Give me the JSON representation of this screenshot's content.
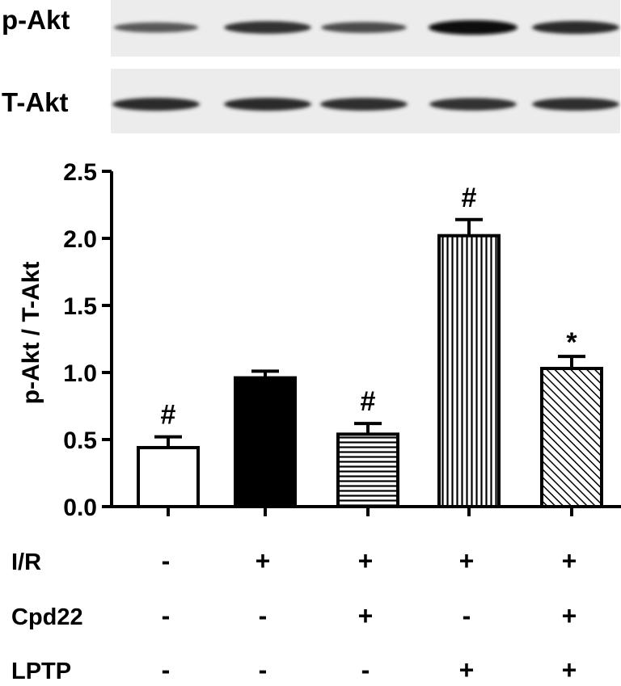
{
  "blot": {
    "rows": [
      {
        "label": "p-Akt",
        "band_intensity": [
          0.45,
          0.75,
          0.55,
          1.0,
          0.8
        ]
      },
      {
        "label": "T-Akt",
        "band_intensity": [
          0.8,
          0.8,
          0.78,
          0.75,
          0.78
        ]
      }
    ]
  },
  "chart_data": {
    "type": "bar",
    "ylabel": "p-Akt / T-Akt",
    "ylim": [
      0,
      2.5
    ],
    "yticks": [
      "0.0",
      "0.5",
      "1.0",
      "1.5",
      "2.0",
      "2.5"
    ],
    "values": [
      0.44,
      0.96,
      0.54,
      2.02,
      1.03
    ],
    "errors": [
      0.08,
      0.05,
      0.08,
      0.12,
      0.09
    ],
    "patterns": [
      "white",
      "black",
      "horizontal-lines",
      "vertical-lines",
      "diagonal-lines"
    ],
    "annotations": [
      "#",
      "",
      "#",
      "#",
      "*"
    ]
  },
  "conditions": [
    {
      "label": "I/R",
      "signs": [
        "-",
        "+",
        "+",
        "+",
        "+"
      ]
    },
    {
      "label": "Cpd22",
      "signs": [
        "-",
        "-",
        "+",
        "-",
        "+"
      ]
    },
    {
      "label": "LPTP",
      "signs": [
        "-",
        "-",
        "-",
        "+",
        "+"
      ]
    }
  ]
}
